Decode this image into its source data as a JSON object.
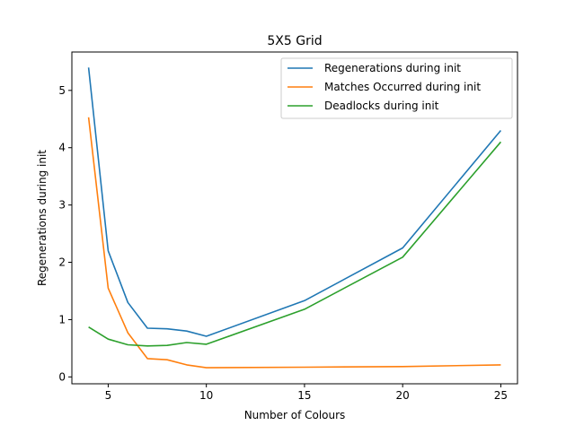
{
  "chart_data": {
    "type": "line",
    "title": "5X5 Grid",
    "xlabel": "Number of Colours",
    "ylabel": "Regenerations during init",
    "xlim": [
      3.15,
      25.85
    ],
    "ylim": [
      -0.12,
      5.67
    ],
    "x_ticks": [
      5,
      10,
      15,
      20,
      25
    ],
    "y_ticks": [
      0,
      1,
      2,
      3,
      4,
      5
    ],
    "grid": false,
    "legend_position": "top-right",
    "x": [
      4,
      5,
      6,
      7,
      8,
      9,
      10,
      15,
      20,
      25
    ],
    "series": [
      {
        "name": "Regenerations during init",
        "color": "#1f77b4",
        "values": [
          5.4,
          2.2,
          1.3,
          0.85,
          0.84,
          0.8,
          0.71,
          1.33,
          2.25,
          4.3
        ]
      },
      {
        "name": "Matches Occurred during init",
        "color": "#ff7f0e",
        "values": [
          4.53,
          1.55,
          0.77,
          0.32,
          0.3,
          0.21,
          0.16,
          0.17,
          0.18,
          0.21
        ]
      },
      {
        "name": "Deadlocks during init",
        "color": "#2ca02c",
        "values": [
          0.87,
          0.66,
          0.56,
          0.54,
          0.55,
          0.6,
          0.57,
          1.18,
          2.09,
          4.1
        ]
      }
    ]
  }
}
